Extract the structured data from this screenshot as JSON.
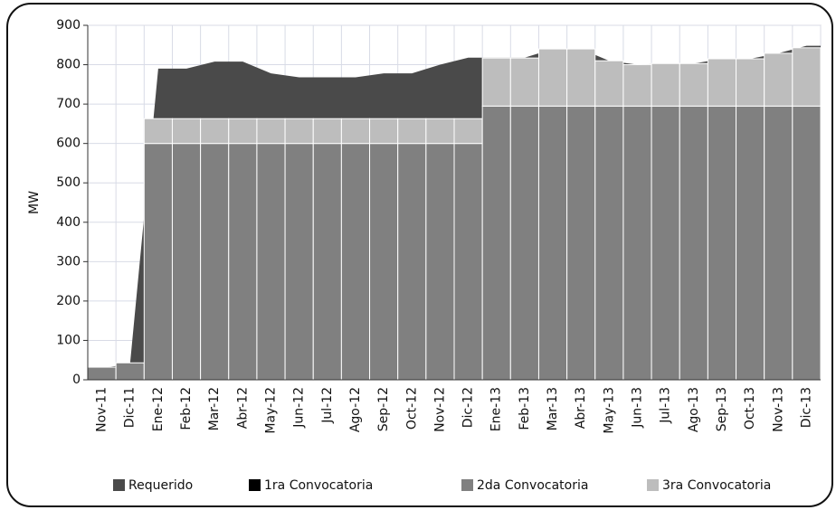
{
  "chart_data": {
    "type": "stacked_bar_area",
    "y_label": "MW",
    "categories": [
      "Nov-11",
      "Dic-11",
      "Ene-12",
      "Feb-12",
      "Mar-12",
      "Abr-12",
      "May-12",
      "Jun-12",
      "Jul-12",
      "Ago-12",
      "Sep-12",
      "Oct-12",
      "Nov-12",
      "Dic-12",
      "Ene-13",
      "Feb-13",
      "Mar-13",
      "Abr-13",
      "May-13",
      "Jun-13",
      "Jul-13",
      "Ago-13",
      "Sep-13",
      "Oct-13",
      "Nov-13",
      "Dic-13"
    ],
    "area": {
      "name": "Requerido",
      "color": "#4a4a4a",
      "values": [
        30,
        40,
        790,
        790,
        808,
        808,
        778,
        768,
        768,
        768,
        778,
        778,
        800,
        818,
        818,
        818,
        840,
        840,
        810,
        800,
        803,
        803,
        815,
        815,
        829,
        848
      ]
    },
    "series": [
      {
        "name": "1ra Convocatoria",
        "color": "#000000",
        "values": [
          null,
          null,
          null,
          null,
          null,
          null,
          null,
          null,
          null,
          null,
          null,
          null,
          null,
          null,
          null,
          null,
          null,
          null,
          null,
          null,
          null,
          null,
          null,
          null,
          null,
          null
        ]
      },
      {
        "name": "2da Convocatoria",
        "color": "#808080",
        "values": [
          32,
          43,
          600,
          600,
          600,
          600,
          600,
          600,
          600,
          600,
          600,
          600,
          600,
          600,
          695,
          695,
          695,
          695,
          695,
          695,
          695,
          695,
          695,
          695,
          695,
          695
        ]
      },
      {
        "name": "3ra Convocatoria",
        "color": "#bdbdbd",
        "values": [
          null,
          null,
          63,
          63,
          63,
          63,
          63,
          63,
          63,
          63,
          63,
          63,
          63,
          63,
          122,
          122,
          145,
          145,
          115,
          105,
          108,
          108,
          120,
          120,
          134,
          148
        ]
      }
    ],
    "ylim": [
      0,
      900
    ],
    "yticks": [
      0,
      100,
      200,
      300,
      400,
      500,
      600,
      700,
      800,
      900
    ],
    "grid": true
  }
}
